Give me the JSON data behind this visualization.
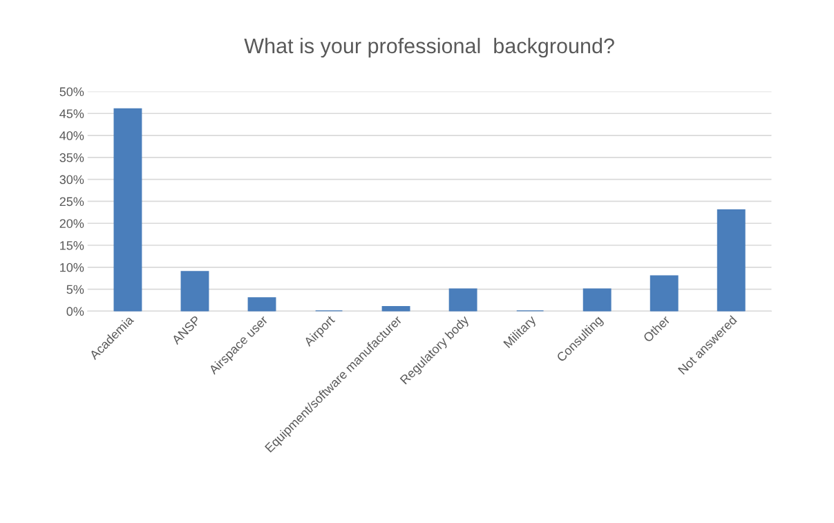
{
  "chart_data": {
    "type": "bar",
    "title": "What is your professional  background?",
    "categories": [
      "Academia",
      "ANSP",
      "Airspace user",
      "Airport",
      "Equipment/software manufacturer",
      "Regulatory body",
      "Military",
      "Consulting",
      "Other",
      "Not answered"
    ],
    "values": [
      46,
      9,
      3,
      0,
      1,
      5,
      0,
      5,
      8,
      23
    ],
    "color": "#4a7ebb",
    "ylim": [
      0,
      50
    ],
    "yticks": [
      {
        "value": 0,
        "label": "0%"
      },
      {
        "value": 5,
        "label": "5%"
      },
      {
        "value": 10,
        "label": "10%"
      },
      {
        "value": 15,
        "label": "15%"
      },
      {
        "value": 20,
        "label": "20%"
      },
      {
        "value": 25,
        "label": "25%"
      },
      {
        "value": 30,
        "label": "30%"
      },
      {
        "value": 35,
        "label": "35%"
      },
      {
        "value": 40,
        "label": "40%"
      },
      {
        "value": 45,
        "label": "45%"
      },
      {
        "value": 50,
        "label": "50%"
      }
    ],
    "grid": "y",
    "legend": false
  }
}
